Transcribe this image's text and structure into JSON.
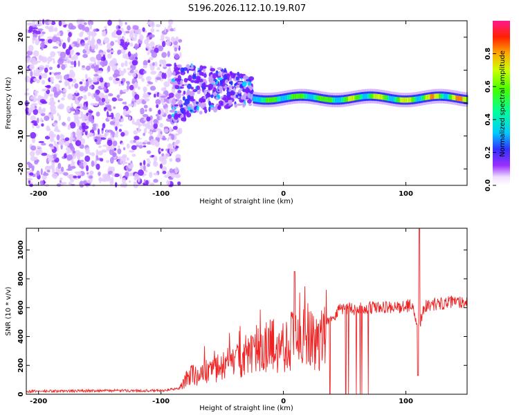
{
  "title": "S196.2026.112.10.19.R07",
  "chart_data": [
    {
      "type": "heatmap",
      "xlabel": "Height of straight line (km)",
      "ylabel": "Frequency (Hz)",
      "xlim": [
        -210,
        150
      ],
      "ylim": [
        -25,
        25
      ],
      "xticks": [
        -200,
        -100,
        0,
        100
      ],
      "yticks": [
        20,
        10,
        0,
        -10,
        -20
      ],
      "description_bands": [
        {
          "x_range": [
            -210,
            -90
          ],
          "pattern": "broadband noise",
          "frequency_spread": [
            -25,
            25
          ],
          "amplitude": [
            0.0,
            0.15
          ]
        },
        {
          "x_range": [
            -90,
            -25
          ],
          "pattern": "diffuse signal",
          "frequency_spread": [
            -5,
            8
          ],
          "amplitude": [
            0.1,
            0.35
          ]
        },
        {
          "x_range": [
            -25,
            150
          ],
          "pattern": "narrow line",
          "frequency_center": 1.5,
          "amplitude": [
            0.3,
            0.9
          ]
        }
      ],
      "colorbar": {
        "label": "Normalized spectral amplitude",
        "ticks": [
          "0.0",
          "0.2",
          "0.4",
          "0.6",
          "0.8"
        ],
        "range": [
          0,
          1
        ]
      }
    },
    {
      "type": "line",
      "xlabel": "Height of straight line (km)",
      "ylabel": "SNR (10 * v/v)",
      "xlim": [
        -210,
        150
      ],
      "ylim": [
        0,
        1150
      ],
      "xticks": [
        -200,
        -100,
        0,
        100
      ],
      "yticks": [
        0,
        200,
        400,
        600,
        800,
        1000
      ],
      "series": [
        {
          "name": "SNR",
          "color": "#ee2222",
          "x": [
            -210,
            -150,
            -100,
            -85,
            -80,
            -75,
            -70,
            -65,
            -60,
            -55,
            -50,
            -45,
            -40,
            -35,
            -30,
            -25,
            -20,
            -15,
            -10,
            -5,
            0,
            5,
            10,
            15,
            20,
            25,
            30,
            35,
            40,
            45,
            50,
            60,
            70,
            80,
            90,
            100,
            105,
            110,
            115,
            120,
            130,
            140,
            150
          ],
          "y": [
            20,
            25,
            25,
            40,
            120,
            180,
            150,
            200,
            180,
            210,
            230,
            260,
            280,
            320,
            340,
            330,
            380,
            400,
            430,
            420,
            420,
            460,
            500,
            480,
            470,
            450,
            460,
            500,
            520,
            590,
            600,
            590,
            600,
            600,
            600,
            610,
            620,
            450,
            610,
            620,
            630,
            640,
            640
          ]
        }
      ],
      "annotations": [
        {
          "x": 9,
          "y": 850,
          "label": "peak"
        },
        {
          "x": 111,
          "y": 1150,
          "label": "peak"
        }
      ]
    }
  ]
}
